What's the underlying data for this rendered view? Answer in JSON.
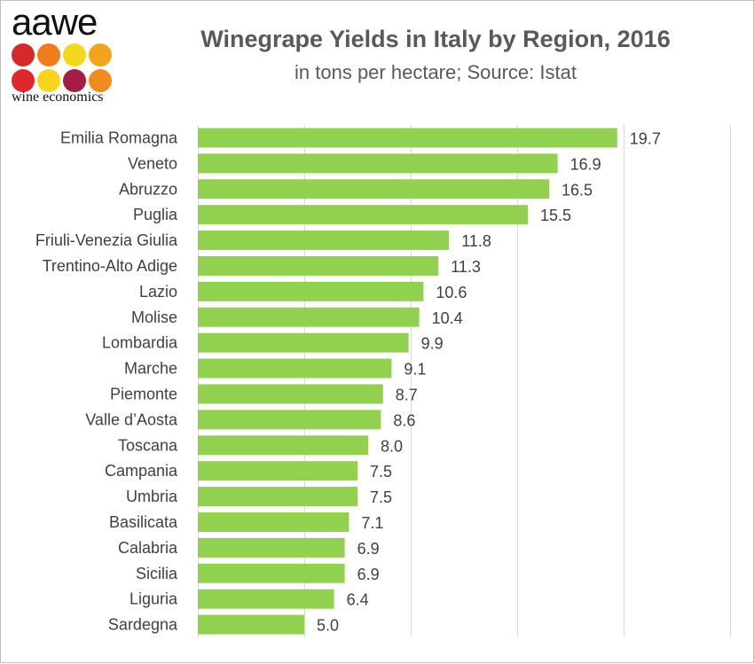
{
  "logo": {
    "word": "aawe",
    "subtitle": "wine economics",
    "dot_colors": [
      "#d42a2a",
      "#f07c1e",
      "#f5d81e",
      "#f2a51c",
      "#e0272b",
      "#f7d51d",
      "#a51c44",
      "#f28b1e"
    ]
  },
  "chart_data": {
    "type": "bar",
    "orientation": "horizontal",
    "title": "Winegrape Yields in Italy by Region, 2016",
    "subtitle": "in tons per hectare; Source: Istat",
    "xlabel": "",
    "ylabel": "",
    "xlim": [
      0,
      25
    ],
    "grid": true,
    "bar_color": "#92d050",
    "categories": [
      "Emilia Romagna",
      "Veneto",
      "Abruzzo",
      "Puglia",
      "Friuli-Venezia Giulia",
      "Trentino-Alto Adige",
      "Lazio",
      "Molise",
      "Lombardia",
      "Marche",
      "Piemonte",
      "Valle d’Aosta",
      "Toscana",
      "Campania",
      "Umbria",
      "Basilicata",
      "Calabria",
      "Sicilia",
      "Liguria",
      "Sardegna"
    ],
    "values": [
      19.7,
      16.9,
      16.5,
      15.5,
      11.8,
      11.3,
      10.6,
      10.4,
      9.9,
      9.1,
      8.7,
      8.6,
      8.0,
      7.5,
      7.5,
      7.1,
      6.9,
      6.9,
      6.4,
      5.0
    ],
    "value_labels": [
      "19.7",
      "16.9",
      "16.5",
      "15.5",
      "11.8",
      "11.3",
      "10.6",
      "10.4",
      "9.9",
      "9.1",
      "8.7",
      "8.6",
      "8.0",
      "7.5",
      "7.5",
      "7.1",
      "6.9",
      "6.9",
      "6.4",
      "5.0"
    ]
  }
}
